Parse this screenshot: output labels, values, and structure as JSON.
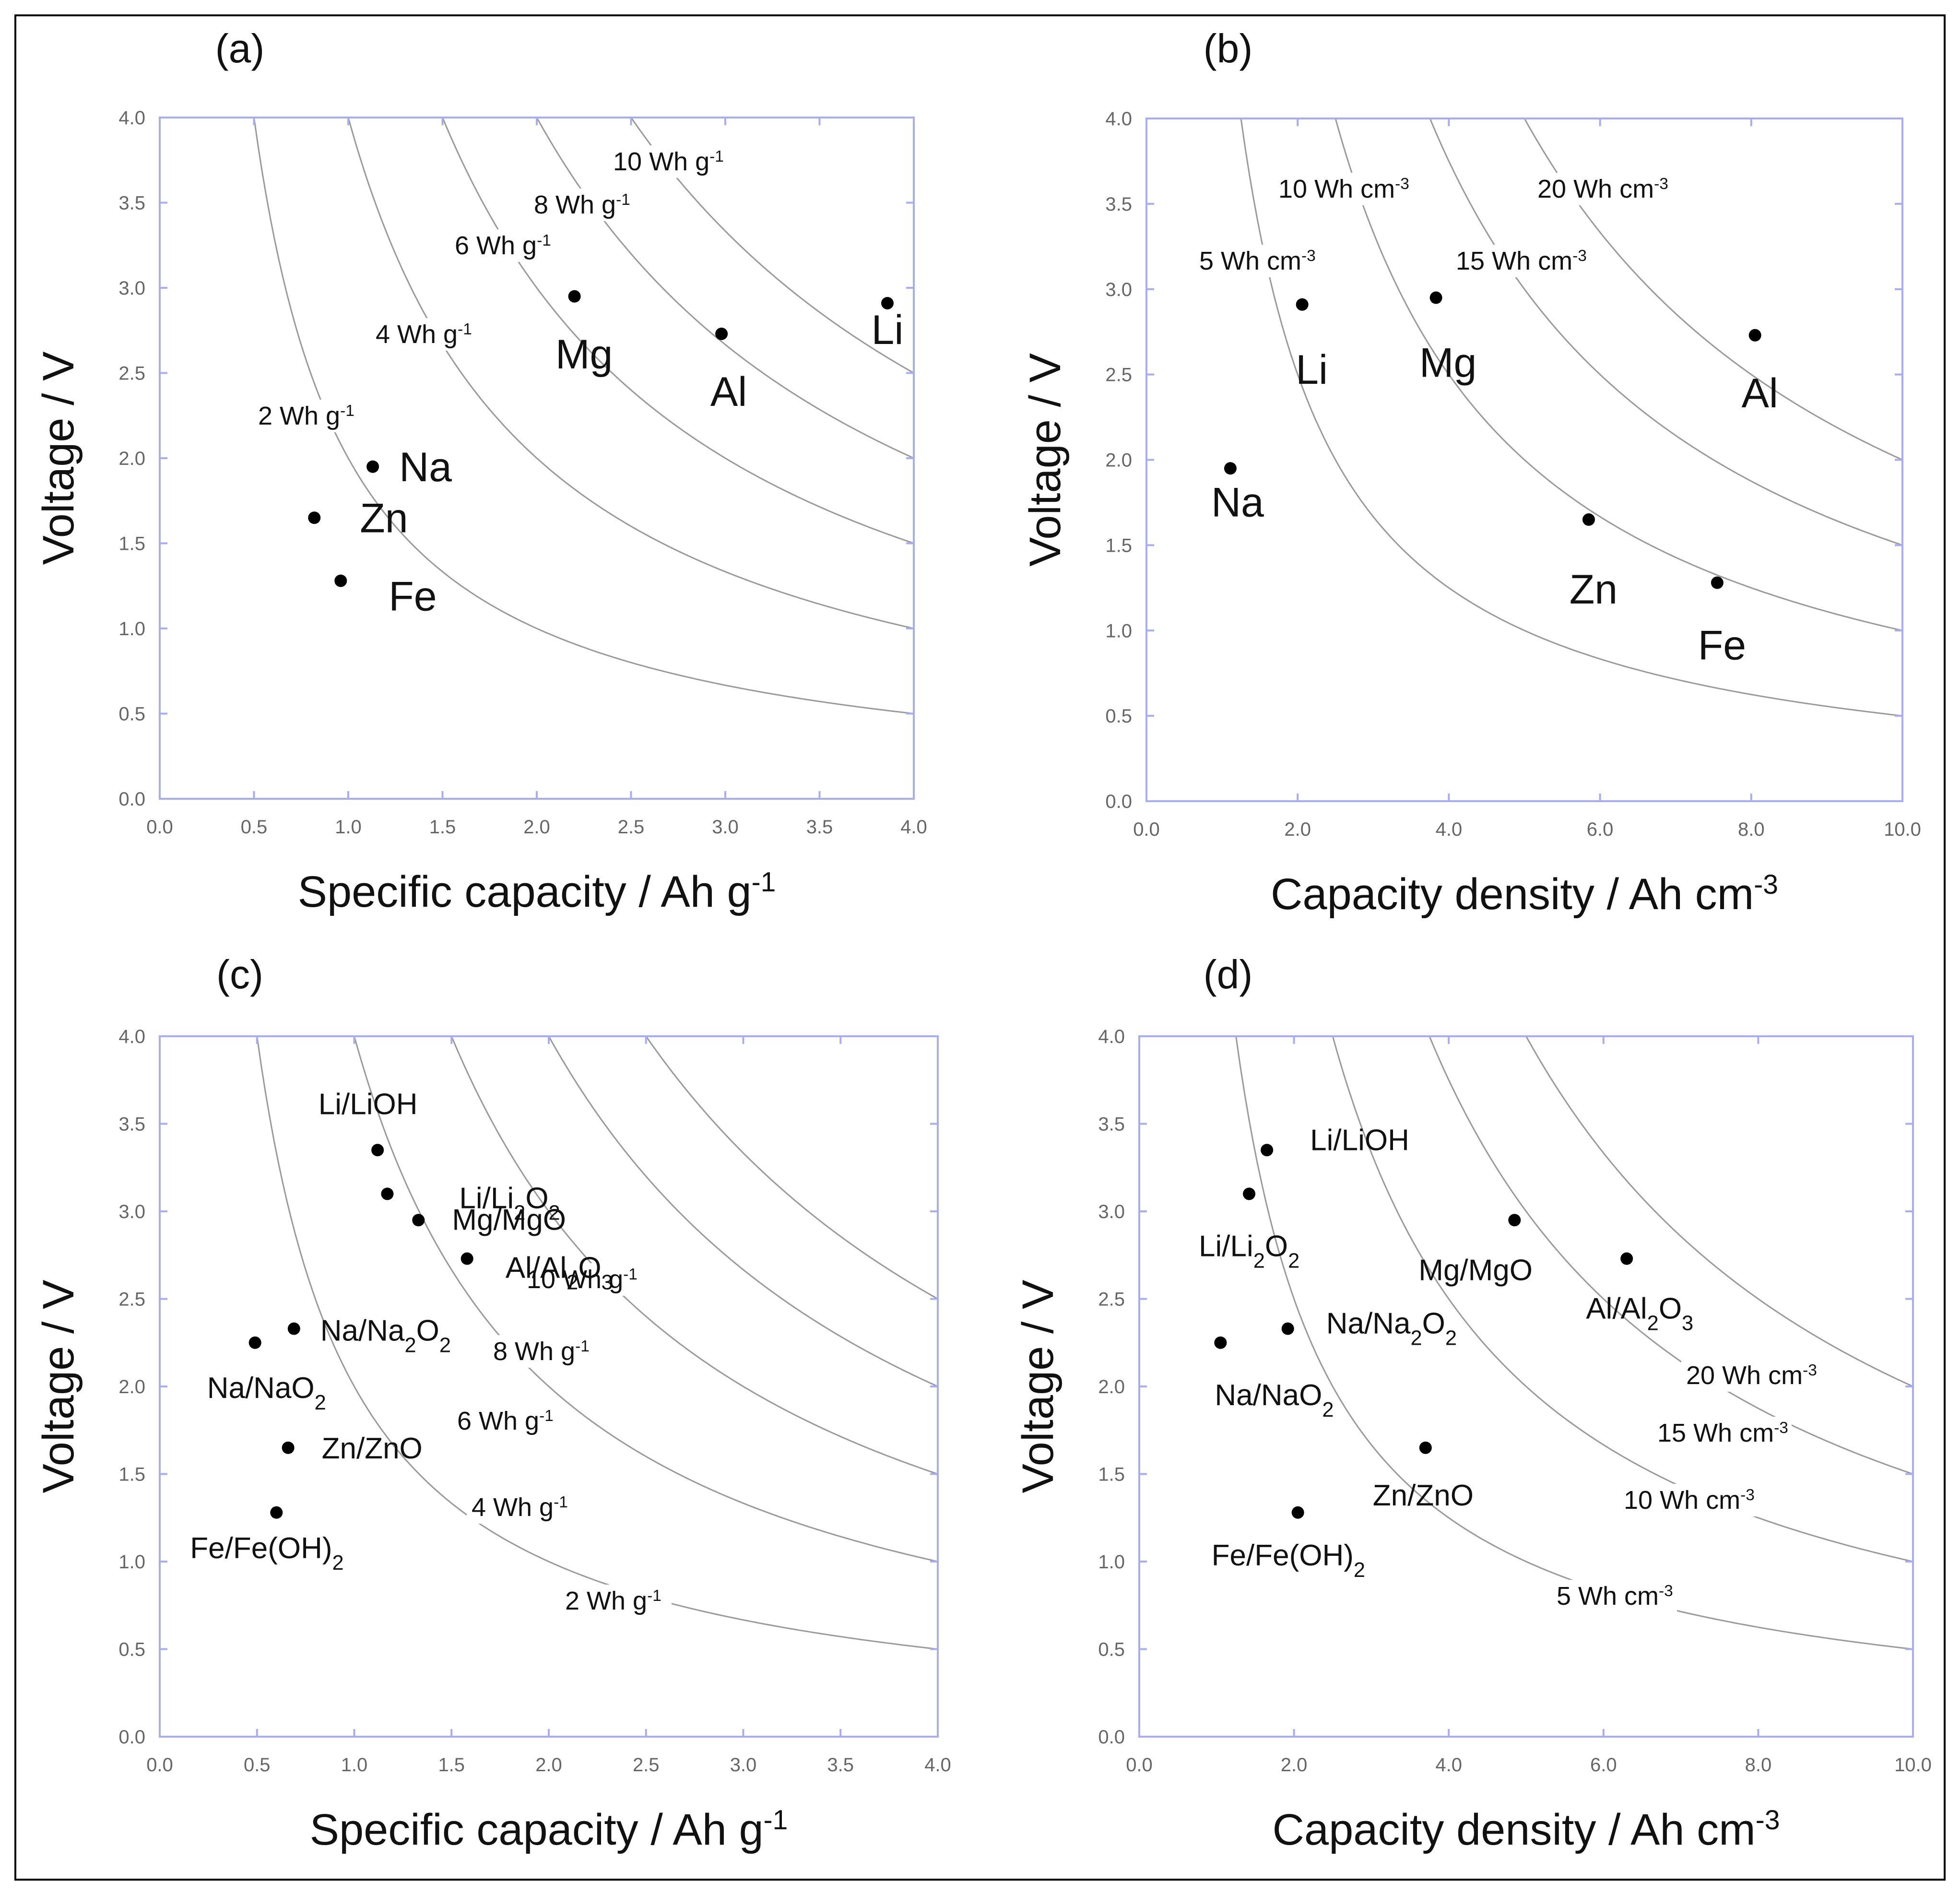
{
  "figure": {
    "axis_color": "#a8acf0",
    "curve_color": "#9a9a9a",
    "point_color": "#000000"
  },
  "chart_data": [
    {
      "type": "scatter",
      "panel": "(a)",
      "xlabel": "Specific capacity / Ah g",
      "xlabel_sup": "-1",
      "ylabel": "Voltage / V",
      "xlim": [
        0.0,
        4.0
      ],
      "ylim": [
        0.0,
        4.0
      ],
      "xticks": [
        "0.0",
        "0.5",
        "1.0",
        "1.5",
        "2.0",
        "2.5",
        "3.0",
        "3.5",
        "4.0"
      ],
      "yticks": [
        "0.0",
        "0.5",
        "1.0",
        "1.5",
        "2.0",
        "2.5",
        "3.0",
        "3.5",
        "4.0"
      ],
      "grid": false,
      "iso_curves": [
        {
          "value": 2,
          "text": "2 Wh g",
          "sup": "-1"
        },
        {
          "value": 4,
          "text": "4 Wh g",
          "sup": "-1"
        },
        {
          "value": 6,
          "text": "6 Wh g",
          "sup": "-1"
        },
        {
          "value": 8,
          "text": "8 Wh g",
          "sup": "-1"
        },
        {
          "value": 10,
          "text": "10 Wh g",
          "sup": "-1"
        }
      ],
      "points": [
        {
          "label": "Li",
          "x": 3.86,
          "y": 2.91
        },
        {
          "label": "Al",
          "x": 2.98,
          "y": 2.73
        },
        {
          "label": "Mg",
          "x": 2.2,
          "y": 2.95
        },
        {
          "label": "Na",
          "x": 1.13,
          "y": 1.95
        },
        {
          "label": "Zn",
          "x": 0.82,
          "y": 1.65
        },
        {
          "label": "Fe",
          "x": 0.96,
          "y": 1.28
        }
      ]
    },
    {
      "type": "scatter",
      "panel": "(b)",
      "xlabel": "Capacity density / Ah cm",
      "xlabel_sup": "-3",
      "ylabel": "Voltage / V",
      "xlim": [
        0.0,
        10.0
      ],
      "ylim": [
        0.0,
        4.0
      ],
      "xticks": [
        "0.0",
        "2.0",
        "4.0",
        "6.0",
        "8.0",
        "10.0"
      ],
      "yticks": [
        "0.0",
        "0.5",
        "1.0",
        "1.5",
        "2.0",
        "2.5",
        "3.0",
        "3.5",
        "4.0"
      ],
      "grid": false,
      "iso_curves": [
        {
          "value": 5,
          "text": "5 Wh cm",
          "sup": "-3"
        },
        {
          "value": 10,
          "text": "10 Wh cm",
          "sup": "-3"
        },
        {
          "value": 15,
          "text": "15 Wh cm",
          "sup": "-3"
        },
        {
          "value": 20,
          "text": "20 Wh cm",
          "sup": "-3"
        }
      ],
      "points": [
        {
          "label": "Li",
          "x": 2.06,
          "y": 2.91
        },
        {
          "label": "Mg",
          "x": 3.83,
          "y": 2.95
        },
        {
          "label": "Al",
          "x": 8.05,
          "y": 2.73
        },
        {
          "label": "Na",
          "x": 1.11,
          "y": 1.95
        },
        {
          "label": "Zn",
          "x": 5.85,
          "y": 1.65
        },
        {
          "label": "Fe",
          "x": 7.55,
          "y": 1.28
        }
      ]
    },
    {
      "type": "scatter",
      "panel": "(c)",
      "xlabel": "Specific capacity / Ah g",
      "xlabel_sup": "-1",
      "ylabel": "Voltage / V",
      "xlim": [
        0.0,
        4.0
      ],
      "ylim": [
        0.0,
        4.0
      ],
      "xticks": [
        "0.0",
        "0.5",
        "1.0",
        "1.5",
        "2.0",
        "2.5",
        "3.0",
        "3.5",
        "4.0"
      ],
      "yticks": [
        "0.0",
        "0.5",
        "1.0",
        "1.5",
        "2.0",
        "2.5",
        "3.0",
        "3.5",
        "4.0"
      ],
      "grid": false,
      "iso_curves": [
        {
          "value": 2,
          "text": "2 Wh g",
          "sup": "-1"
        },
        {
          "value": 4,
          "text": "4 Wh g",
          "sup": "-1"
        },
        {
          "value": 6,
          "text": "6 Wh g",
          "sup": "-1"
        },
        {
          "value": 8,
          "text": "8 Wh g",
          "sup": "-1"
        },
        {
          "value": 10,
          "text": "10 Wh g",
          "sup": "-1"
        }
      ],
      "points": [
        {
          "label": "Li/LiOH",
          "x": 1.12,
          "y": 3.35
        },
        {
          "label": "Li/Li₂O₂",
          "x": 1.17,
          "y": 3.1
        },
        {
          "label": "Mg/MgO",
          "x": 1.33,
          "y": 2.95
        },
        {
          "label": "Al/Al₂O₃",
          "x": 1.58,
          "y": 2.73
        },
        {
          "label": "Na/Na₂O₂",
          "x": 0.69,
          "y": 2.33
        },
        {
          "label": "Na/NaO₂",
          "x": 0.49,
          "y": 2.25
        },
        {
          "label": "Zn/ZnO",
          "x": 0.66,
          "y": 1.65
        },
        {
          "label": "Fe/Fe(OH)₂",
          "x": 0.6,
          "y": 1.28
        }
      ]
    },
    {
      "type": "scatter",
      "panel": "(d)",
      "xlabel": "Capacity density / Ah cm",
      "xlabel_sup": "-3",
      "ylabel": "Voltage / V",
      "xlim": [
        0.0,
        10.0
      ],
      "ylim": [
        0.0,
        4.0
      ],
      "xticks": [
        "0.0",
        "2.0",
        "4.0",
        "6.0",
        "8.0",
        "10.0"
      ],
      "yticks": [
        "0.0",
        "0.5",
        "1.0",
        "1.5",
        "2.0",
        "2.5",
        "3.0",
        "3.5",
        "4.0"
      ],
      "grid": false,
      "iso_curves": [
        {
          "value": 5,
          "text": "5 Wh cm",
          "sup": "-3"
        },
        {
          "value": 10,
          "text": "10 Wh cm",
          "sup": "-3"
        },
        {
          "value": 15,
          "text": "15 Wh cm",
          "sup": "-3"
        },
        {
          "value": 20,
          "text": "20 Wh cm",
          "sup": "-3"
        }
      ],
      "points": [
        {
          "label": "Li/LiOH",
          "x": 1.65,
          "y": 3.35
        },
        {
          "label": "Li/Li₂O₂",
          "x": 1.42,
          "y": 3.1
        },
        {
          "label": "Mg/MgO",
          "x": 4.85,
          "y": 2.95
        },
        {
          "label": "Al/Al₂O₃",
          "x": 6.3,
          "y": 2.73
        },
        {
          "label": "Na/Na₂O₂",
          "x": 1.92,
          "y": 2.33
        },
        {
          "label": "Na/NaO₂",
          "x": 1.05,
          "y": 2.25
        },
        {
          "label": "Zn/ZnO",
          "x": 3.7,
          "y": 1.65
        },
        {
          "label": "Fe/Fe(OH)₂",
          "x": 2.05,
          "y": 1.28
        }
      ]
    }
  ]
}
